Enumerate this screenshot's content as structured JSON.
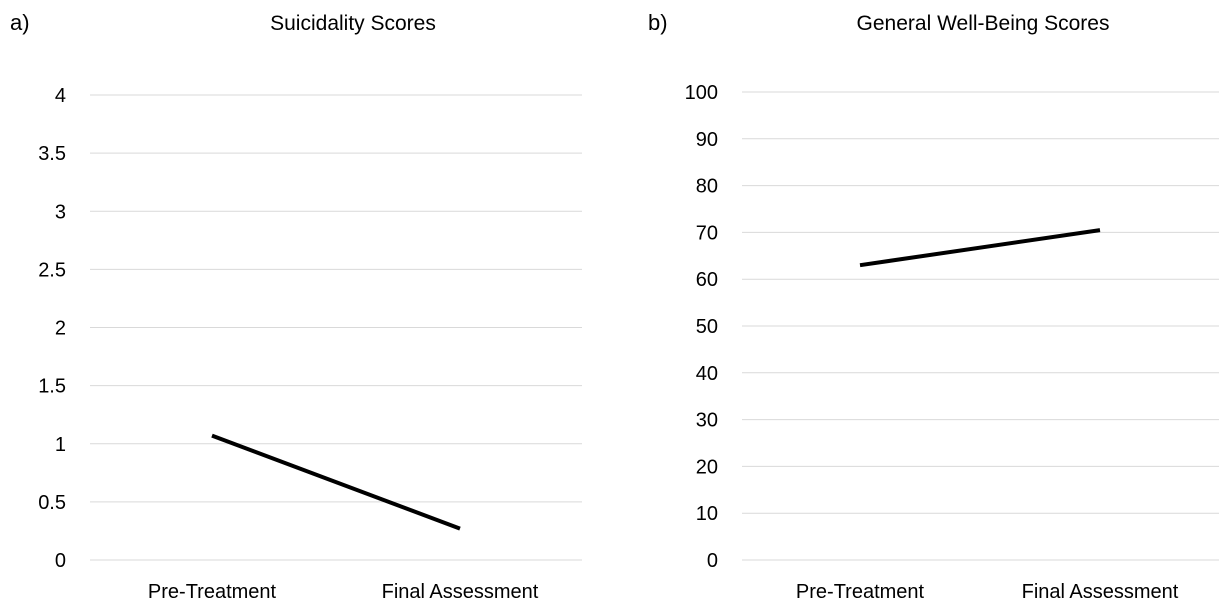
{
  "panels": [
    {
      "letter": "a)"
    },
    {
      "letter": "b)"
    }
  ],
  "chart_data": [
    {
      "type": "line",
      "title": "Suicidality Scores",
      "xlabel": "",
      "ylabel": "",
      "categories": [
        "Pre-Treatment",
        "Final Assessment"
      ],
      "series": [
        {
          "values": [
            1.07,
            0.27
          ],
          "color": "#000000"
        }
      ],
      "ylim": [
        0,
        4
      ],
      "yticks": [
        0,
        0.5,
        1,
        1.5,
        2,
        2.5,
        3,
        3.5,
        4
      ],
      "ytick_labels": [
        "0",
        "0.5",
        "1",
        "1.5",
        "2",
        "2.5",
        "3",
        "3.5",
        "4"
      ],
      "grid": true,
      "legend": "none"
    },
    {
      "type": "line",
      "title": "General Well-Being Scores",
      "xlabel": "",
      "ylabel": "",
      "categories": [
        "Pre-Treatment",
        "Final Assessment"
      ],
      "series": [
        {
          "values": [
            63,
            70.5
          ],
          "color": "#000000"
        }
      ],
      "ylim": [
        0,
        100
      ],
      "yticks": [
        0,
        10,
        20,
        30,
        40,
        50,
        60,
        70,
        80,
        90,
        100
      ],
      "ytick_labels": [
        "0",
        "10",
        "20",
        "30",
        "40",
        "50",
        "60",
        "70",
        "80",
        "90",
        "100"
      ],
      "grid": true,
      "legend": "none"
    }
  ]
}
